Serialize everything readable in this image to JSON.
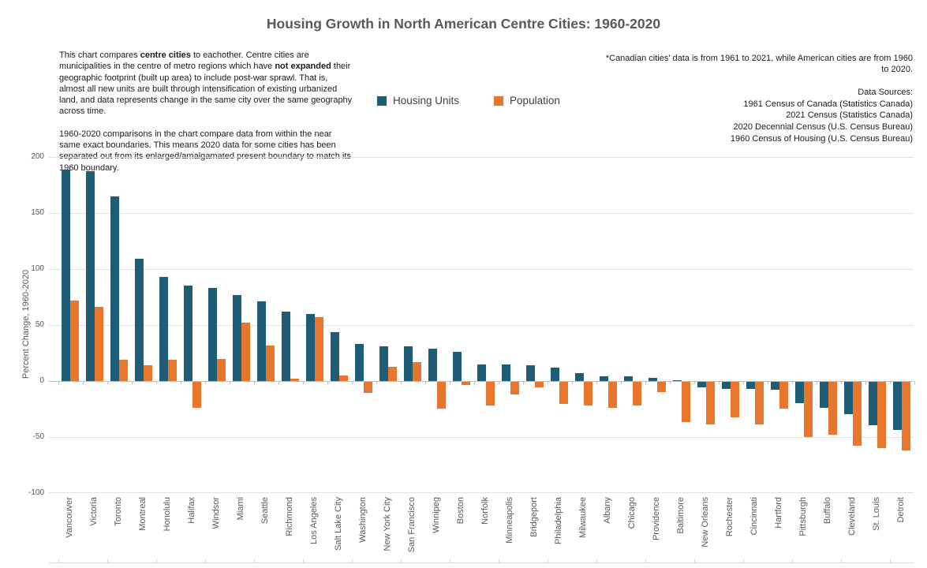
{
  "title": "Housing Growth in North American Centre Cities: 1960-2020",
  "description": {
    "p1_pre": "This chart compares ",
    "p1_bold1": "centre cities",
    "p1_mid": " to eachother. Centre cities are municipalities in the centre of metro regions which have ",
    "p1_bold2": "not expanded",
    "p1_post": " their geographic footprint (built up area) to include post-war sprawl. That is, almost all new units are built through intensification of existing urbanized land, and data represents change in the same city over the same geography across time.",
    "p2": "1960-2020 comparisons in the chart compare data from within the near same exact boundaries. This means 2020 data for some cities has been separated out from its enlarged/amalgamated present boundary to match its 1960 boundary."
  },
  "footnote": "*Canadian cities' data is from 1961 to 2021, while American cities are from 1960 to 2020.",
  "data_sources": [
    "Data Sources:",
    "1961 Census of Canada (Statistics Canada)",
    "2021 Census (Statistics Canada)",
    "2020 Decennial Census (U.S. Census Bureau)",
    "1960 Census of Housing (U.S. Census Bureau)"
  ],
  "colors": {
    "housing_units": "#1F5C75",
    "population": "#E8762C",
    "text_gray": "#595959",
    "gridline": "#E2E2E2",
    "axis_line": "#BFBFBF"
  },
  "chart_data": {
    "type": "bar",
    "title": "Housing Growth in North American Centre Cities: 1960-2020",
    "xlabel": "",
    "ylabel": "Percent Change, 1960-2020",
    "ylim": [
      -100,
      200
    ],
    "yticks": [
      200,
      150,
      100,
      50,
      0,
      -50,
      -100
    ],
    "grid": true,
    "legend_position": "top-center",
    "categories": [
      "Vancouver",
      "Victoria",
      "Toronto",
      "Montreal",
      "Honolulu",
      "Halifax",
      "Windsor",
      "Miami",
      "Seattle",
      "Richmond",
      "Los Angeles",
      "Salt Lake City",
      "Washington",
      "New York City",
      "San Francisco",
      "Winnipeg",
      "Boston",
      "Norfolk",
      "Minneapolis",
      "Bridgeport",
      "Philadelphia",
      "Milwaukee",
      "Albany",
      "Chicago",
      "Providence",
      "Baltimore",
      "New Orleans",
      "Rochester",
      "Cincinnati",
      "Hartford",
      "Pittsburgh",
      "Buffalo",
      "Cleveland",
      "St. Louis",
      "Detroit"
    ],
    "series": [
      {
        "name": "Housing Units",
        "color": "#1F5C75",
        "values": [
          189,
          187,
          165,
          109,
          93,
          85,
          83,
          77,
          71,
          62,
          60,
          44,
          33,
          31,
          31,
          29,
          26,
          15,
          15,
          14,
          12,
          7,
          4,
          4,
          3,
          1,
          -5,
          -6,
          -6,
          -7,
          -19,
          -23,
          -29,
          -39,
          -43
        ]
      },
      {
        "name": "Population",
        "color": "#E8762C",
        "values": [
          72,
          66,
          19,
          14,
          19,
          -23,
          20,
          52,
          32,
          2,
          57,
          5,
          -10,
          13,
          17,
          -24,
          -3,
          -21,
          -11,
          -5,
          -20,
          -21,
          -23,
          -21,
          -9,
          -36,
          -38,
          -32,
          -38,
          -24,
          -49,
          -47,
          -57,
          -59,
          -61
        ]
      }
    ]
  }
}
